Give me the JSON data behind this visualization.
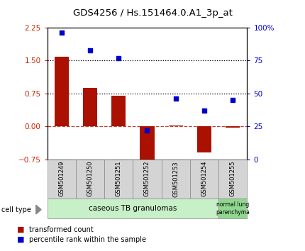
{
  "title": "GDS4256 / Hs.151464.0.A1_3p_at",
  "samples": [
    "GSM501249",
    "GSM501250",
    "GSM501251",
    "GSM501252",
    "GSM501253",
    "GSM501254",
    "GSM501255"
  ],
  "transformed_counts": [
    1.58,
    0.88,
    0.7,
    -0.9,
    0.02,
    -0.6,
    -0.02
  ],
  "percentile_ranks": [
    96,
    83,
    77,
    22,
    46,
    37,
    45
  ],
  "bar_color": "#aa1100",
  "dot_color": "#0000cc",
  "left_ylim": [
    -0.75,
    2.25
  ],
  "left_yticks": [
    -0.75,
    0,
    0.75,
    1.5,
    2.25
  ],
  "right_ylim": [
    0,
    100
  ],
  "right_yticks": [
    0,
    25,
    50,
    75,
    100
  ],
  "right_yticklabels": [
    "0",
    "25",
    "50",
    "75",
    "100%"
  ],
  "hline_y1": 1.5,
  "hline_y2": 0.75,
  "hline_zero": 0,
  "group1_color": "#c8f0c8",
  "group2_color": "#90d890",
  "group1_label": "caseous TB granulomas",
  "group2_label": "normal lung\nparenchyma",
  "cell_type_label": "cell type",
  "legend_red_label": "transformed count",
  "legend_blue_label": "percentile rank within the sample",
  "background_color": "#ffffff",
  "tick_label_color_left": "#cc2200",
  "tick_label_color_right": "#0000cc",
  "sample_box_color": "#d4d4d4"
}
